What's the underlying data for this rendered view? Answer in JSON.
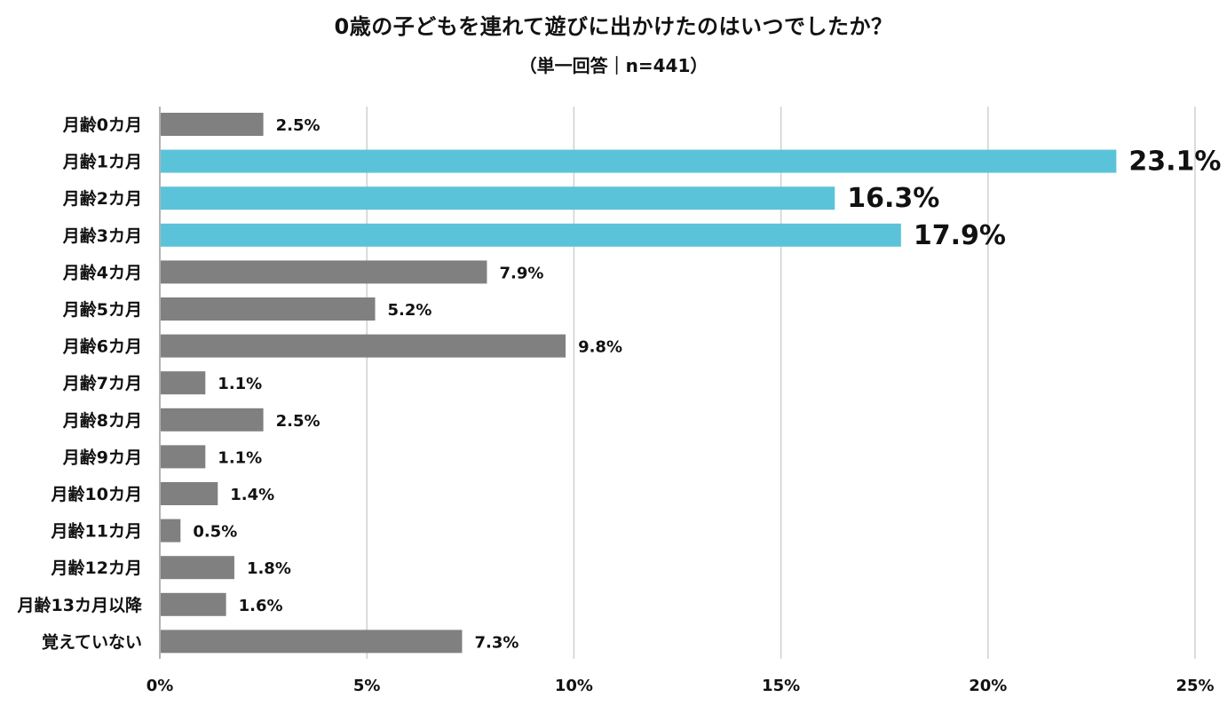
{
  "chart_data": {
    "type": "bar",
    "orientation": "horizontal",
    "title": "0歳の子どもを連れて遊びに出かけたのはいつでしたか？",
    "subtitle": "（単一回答｜n=441）",
    "categories": [
      "月齢0カ月",
      "月齢1カ月",
      "月齢2カ月",
      "月齢3カ月",
      "月齢4カ月",
      "月齢5カ月",
      "月齢6カ月",
      "月齢7カ月",
      "月齢8カ月",
      "月齢9カ月",
      "月齢10カ月",
      "月齢11カ月",
      "月齢12カ月",
      "月齢13カ月以降",
      "覚えていない"
    ],
    "values": [
      2.5,
      23.1,
      16.3,
      17.9,
      7.9,
      5.2,
      9.8,
      1.1,
      2.5,
      1.1,
      1.4,
      0.5,
      1.8,
      1.6,
      7.3
    ],
    "value_labels": [
      "2.5%",
      "23.1%",
      "16.3%",
      "17.9%",
      "7.9%",
      "5.2%",
      "9.8%",
      "1.1%",
      "2.5%",
      "1.1%",
      "1.4%",
      "0.5%",
      "1.8%",
      "1.6%",
      "7.3%"
    ],
    "highlighted": [
      false,
      true,
      true,
      true,
      false,
      false,
      false,
      false,
      false,
      false,
      false,
      false,
      false,
      false,
      false
    ],
    "xlim": [
      0,
      25
    ],
    "xticks": [
      0,
      5,
      10,
      15,
      20,
      25
    ],
    "xtick_labels": [
      "0%",
      "5%",
      "10%",
      "15%",
      "20%",
      "25%"
    ],
    "xlabel": "",
    "ylabel": "",
    "grid": true,
    "colors": {
      "default_bar": "#808080",
      "highlight_bar": "#5bc3d9",
      "grid": "#d0d0d0",
      "axis": "#999999",
      "text": "#111111"
    }
  }
}
